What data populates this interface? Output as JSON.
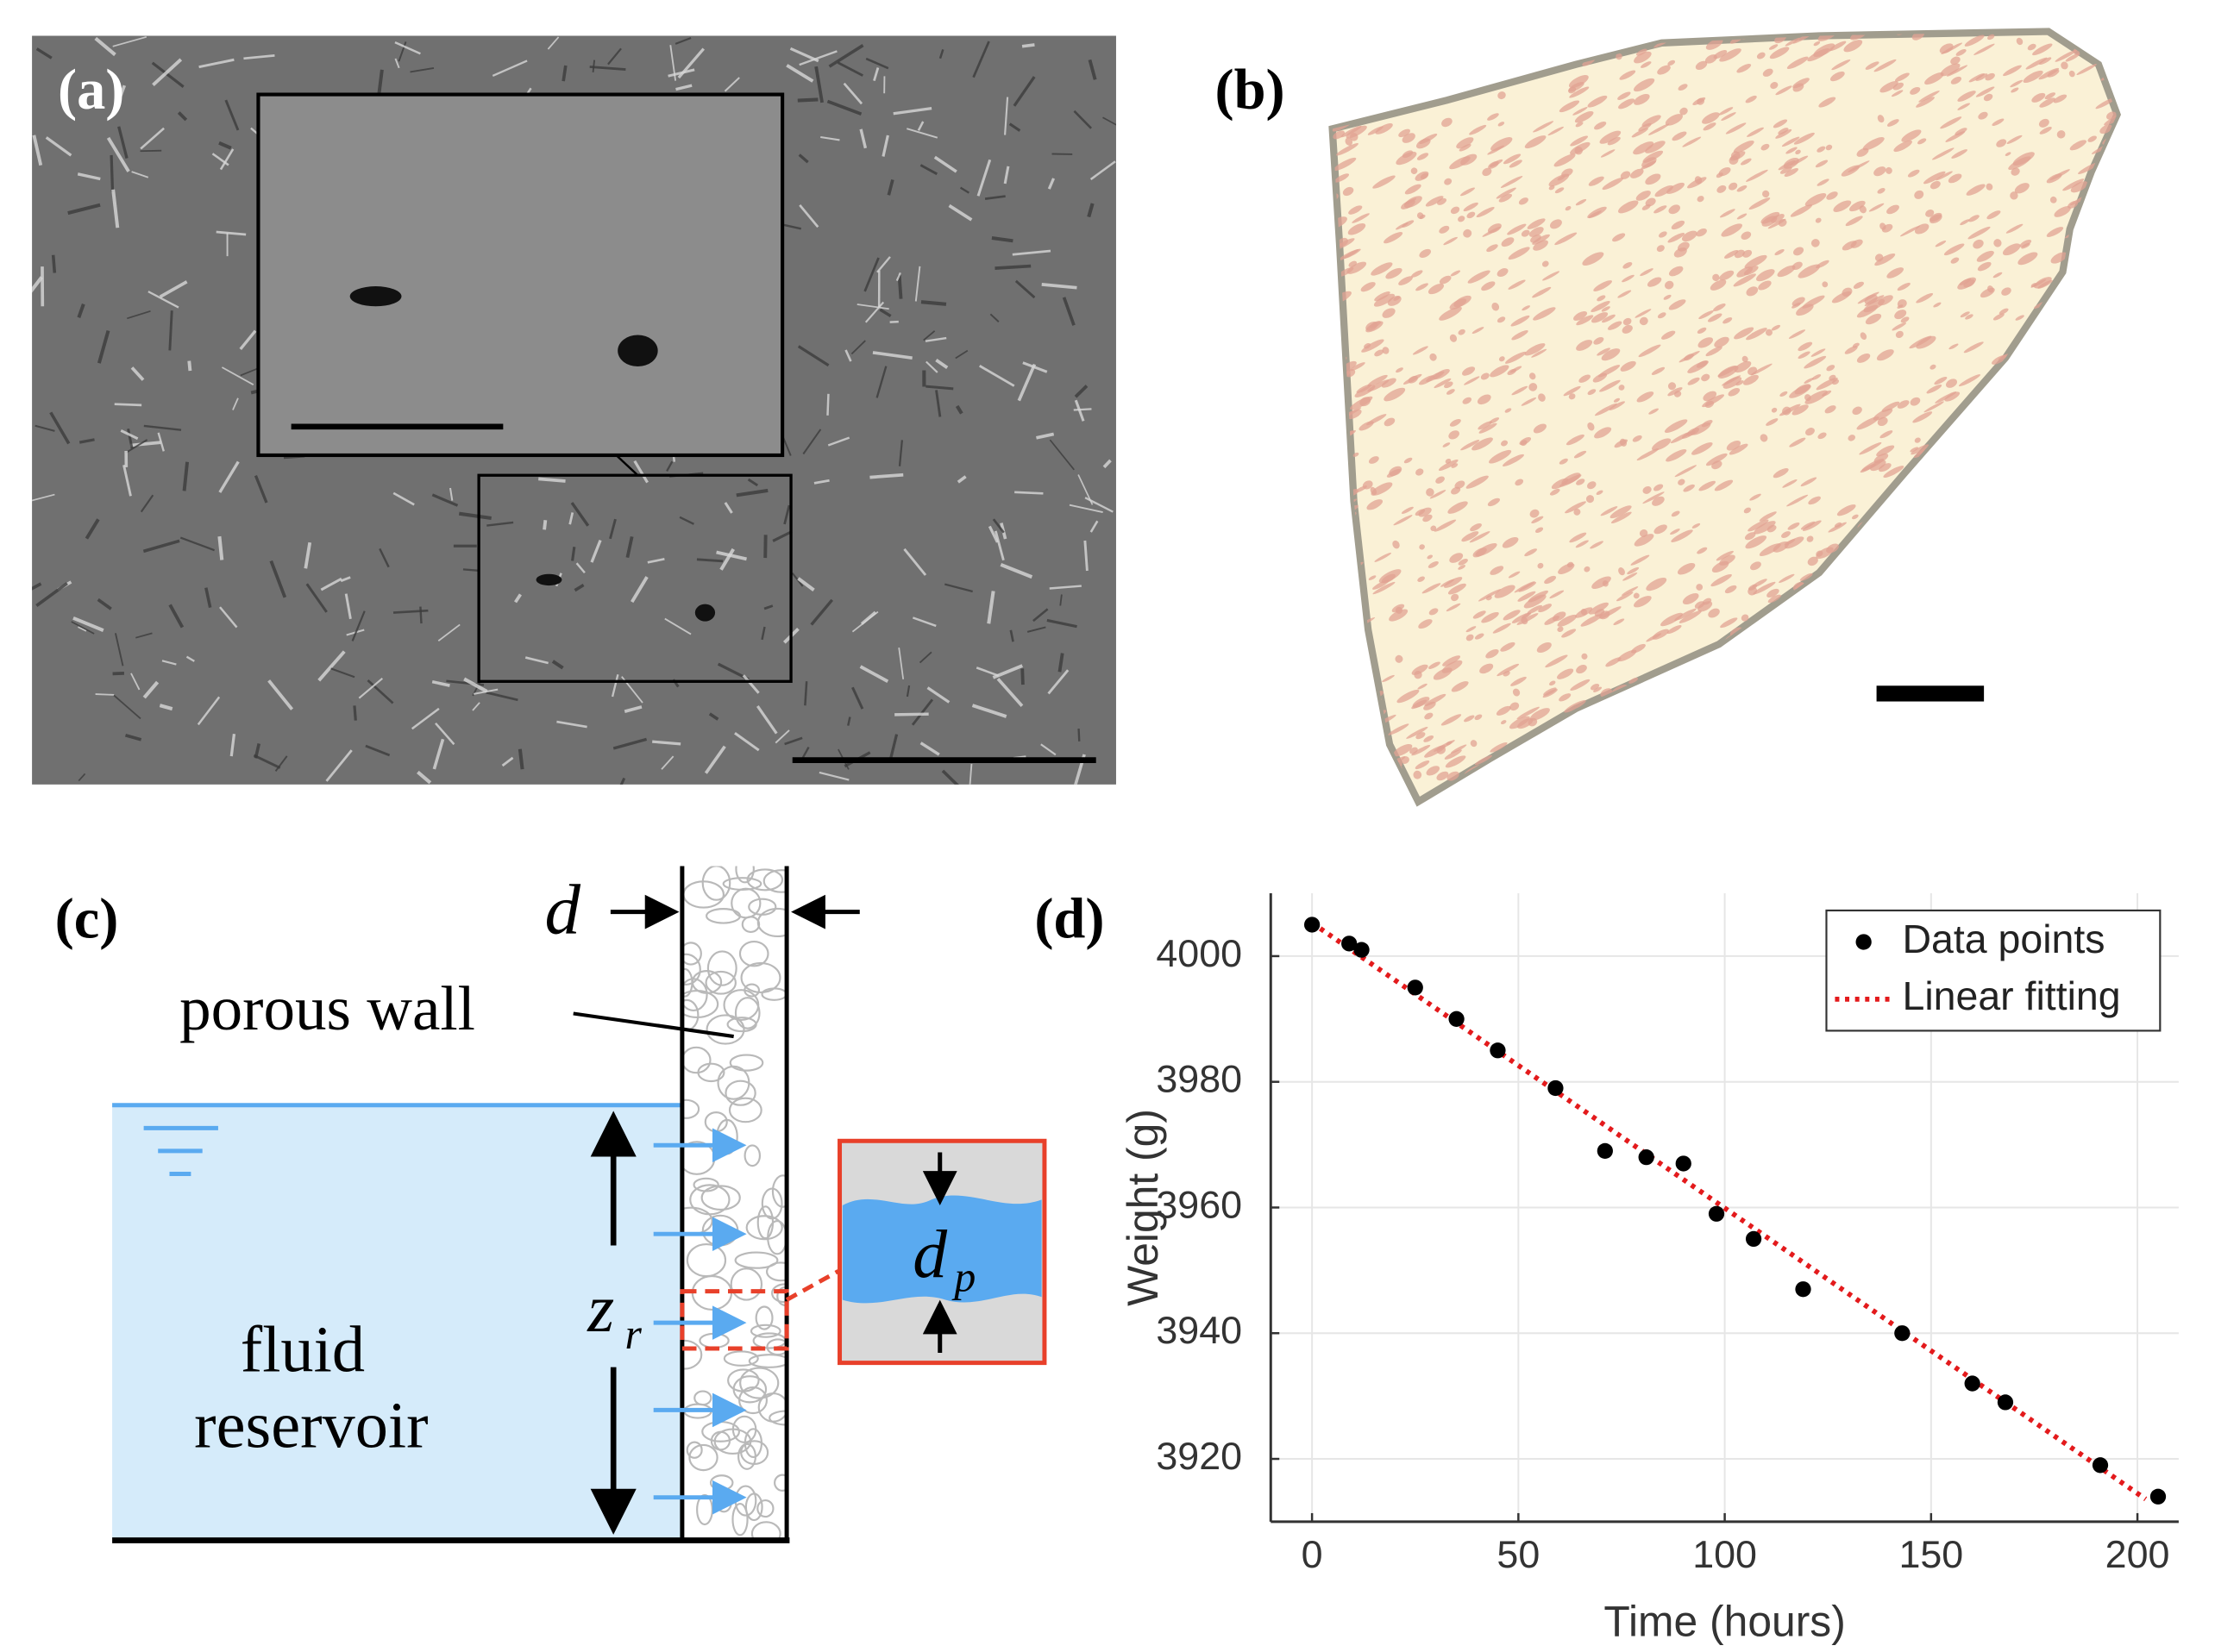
{
  "panels": {
    "a": {
      "label": "(a)"
    },
    "b": {
      "label": "(b)"
    },
    "c": {
      "label": "(c)",
      "wall_thickness_symbol": "d",
      "wall_label": "porous wall",
      "reservoir_label_line1": "fluid",
      "reservoir_label_line2": "reservoir",
      "height_symbol": "z",
      "height_subscript": "r",
      "pore_symbol": "d",
      "pore_subscript": "p"
    },
    "d": {
      "label": "(d)"
    }
  },
  "chart_data": {
    "type": "scatter",
    "x_label": "Time (hours)",
    "y_label": "Weight (g)",
    "xlim": [
      -10,
      210
    ],
    "ylim": [
      3910,
      4010
    ],
    "xticks": [
      0,
      50,
      100,
      150,
      200
    ],
    "yticks": [
      3920,
      3940,
      3960,
      3980,
      4000
    ],
    "grid": true,
    "legend": "upper right",
    "series": [
      {
        "name": "Data points",
        "type": "scatter",
        "color": "#000000",
        "x": [
          0,
          9,
          12,
          25,
          35,
          45,
          59,
          71,
          81,
          90,
          98,
          107,
          119,
          143,
          160,
          168,
          191,
          205
        ],
        "values": [
          4005,
          4002,
          4001,
          3995,
          3990,
          3985,
          3979,
          3969,
          3968,
          3967,
          3959,
          3955,
          3947,
          3940,
          3932,
          3929,
          3919,
          3914
        ]
      },
      {
        "name": "Linear fitting",
        "type": "line",
        "color": "#e31a1c",
        "linestyle": "dotted",
        "x": [
          0,
          202
        ],
        "values": [
          4005.3,
          3913.6
        ]
      }
    ]
  }
}
